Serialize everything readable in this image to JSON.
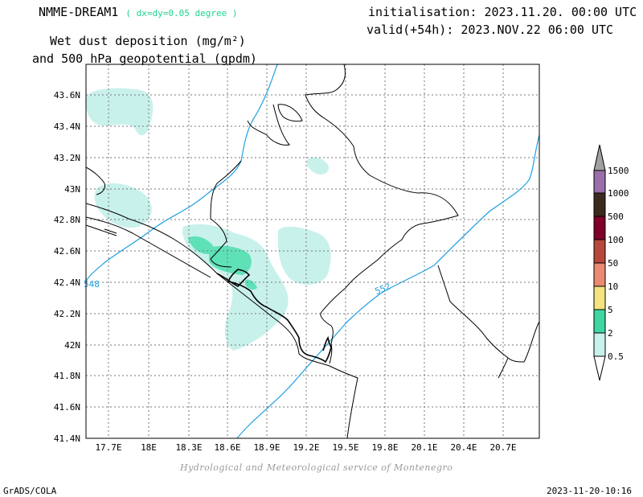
{
  "header": {
    "model": "NMME-DREAM1",
    "resolution": "( dx=dy=0.05 degree )",
    "title_line1": "Wet dust deposition (mg/m²)",
    "title_line2": "and 500 hPa geopotential (gpdm)",
    "init": "initialisation: 2023.11.20. 00:00 UTC",
    "valid": "valid(+54h): 2023.NOV.22 06:00 UTC"
  },
  "map": {
    "lat_labels": [
      "43.6N",
      "43.4N",
      "43.2N",
      "43N",
      "42.8N",
      "42.6N",
      "42.4N",
      "42.2N",
      "42N",
      "41.8N",
      "41.6N",
      "41.4N"
    ],
    "lon_labels": [
      "17.7E",
      "18E",
      "18.3E",
      "18.6E",
      "18.9E",
      "19.2E",
      "19.5E",
      "19.8E",
      "20.1E",
      "20.4E",
      "20.7E"
    ],
    "contour_labels": [
      "548",
      "552"
    ]
  },
  "legend": {
    "title": "",
    "levels": [
      "1500",
      "1000",
      "500",
      "100",
      "50",
      "10",
      "5",
      "2",
      "0.5"
    ],
    "colors": [
      "#9a6ea9",
      "#3c2a1e",
      "#80002a",
      "#b8483c",
      "#ea8a72",
      "#f4e37e",
      "#3ed7a2",
      "#c9f1ec"
    ]
  },
  "colors": {
    "fill_light": "#c9f1ec",
    "fill_medium": "#5fe1b8",
    "contour": "#1fa0e0",
    "border": "#000000",
    "grid": "#777777"
  },
  "footer": {
    "credit": "Hydrological and Meteorological service of Montenegro",
    "software": "GrADS/COLA",
    "timestamp": "2023-11-20-10:16"
  }
}
